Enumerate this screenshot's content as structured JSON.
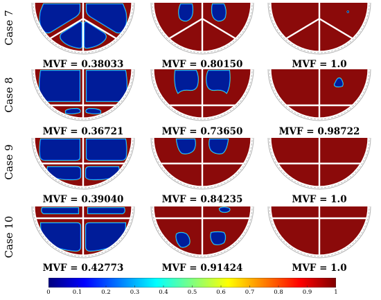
{
  "figure": {
    "rows": [
      {
        "case_label": "Case 7",
        "panels": [
          {
            "mvf_text": "MVF = 0.38033",
            "mvf": 0.38033,
            "blades": 3,
            "blobs": "case7-1"
          },
          {
            "mvf_text": "MVF = 0.80150",
            "mvf": 0.8015,
            "blades": 3,
            "blobs": "case7-2"
          },
          {
            "mvf_text": "MVF = 1.0",
            "mvf": 1.0,
            "blades": 3,
            "blobs": "case7-3"
          }
        ]
      },
      {
        "case_label": "Case 8",
        "panels": [
          {
            "mvf_text": "MVF = 0.36721",
            "mvf": 0.36721,
            "blades": 4,
            "blobs": "case8-1"
          },
          {
            "mvf_text": "MVF = 0.73650",
            "mvf": 0.7365,
            "blades": 4,
            "blobs": "case8-2"
          },
          {
            "mvf_text": "MVF = 0.98722",
            "mvf": 0.98722,
            "blades": 4,
            "blobs": "case8-3"
          }
        ]
      },
      {
        "case_label": "Case 9",
        "panels": [
          {
            "mvf_text": "MVF = 0.39040",
            "mvf": 0.3904,
            "blades": 4,
            "blobs": "case9-1"
          },
          {
            "mvf_text": "MVF = 0.84235",
            "mvf": 0.84235,
            "blades": 4,
            "blobs": "case9-2"
          },
          {
            "mvf_text": "MVF = 1.0",
            "mvf": 1.0,
            "blades": 4,
            "blobs": "case9-3"
          }
        ]
      },
      {
        "case_label": "Case 10",
        "panels": [
          {
            "mvf_text": "MVF = 0.42773",
            "mvf": 0.42773,
            "blades": 4,
            "blobs": "case10-1"
          },
          {
            "mvf_text": "MVF = 0.91424",
            "mvf": 0.91424,
            "blades": 4,
            "blobs": "case10-2"
          },
          {
            "mvf_text": "MVF = 1.0",
            "mvf": 1.0,
            "blades": 4,
            "blobs": "case10-3"
          }
        ]
      }
    ],
    "colorbar": {
      "ticks": [
        "0",
        "0.1",
        "0.2",
        "0.3",
        "0.4",
        "0.5",
        "0.6",
        "0.7",
        "0.8",
        "0.9",
        "1"
      ],
      "range": [
        0,
        1
      ],
      "colors": [
        "#00007f",
        "#0000ff",
        "#007fff",
        "#00ffff",
        "#7fff7f",
        "#ffff00",
        "#ff7f00",
        "#ff0000",
        "#7f0000"
      ]
    },
    "fill_colors": {
      "solid": "#8b0a0a",
      "liquid": "#001c99",
      "blade": "#ffffff",
      "shell": "#b0b0b0"
    }
  }
}
